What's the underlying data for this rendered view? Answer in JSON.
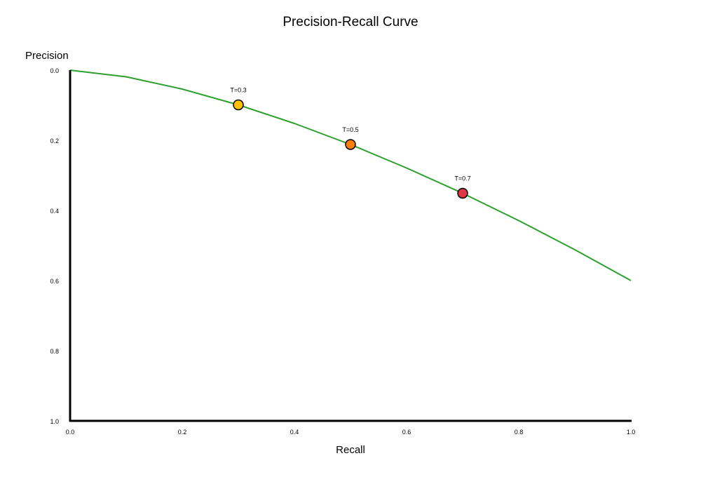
{
  "chart_data": {
    "type": "line",
    "title": "Precision-Recall Curve",
    "xlabel": "Recall",
    "ylabel": "Precision",
    "xlim": [
      0,
      1
    ],
    "ylim": [
      0,
      1
    ],
    "y_inverted": true,
    "grid": false,
    "x_ticks": [
      "0.0",
      "0.2",
      "0.4",
      "0.6",
      "0.8",
      "1.0"
    ],
    "y_ticks": [
      "0.0",
      "0.2",
      "0.4",
      "0.6",
      "0.8",
      "1.0"
    ],
    "series": [
      {
        "color": "#2ca02c",
        "x": [
          0,
          0.1,
          0.2,
          0.3,
          0.4,
          0.5,
          0.6,
          0.7,
          0.8,
          0.9,
          1.0
        ],
        "y": [
          0,
          0.019,
          0.054,
          0.099,
          0.152,
          0.212,
          0.279,
          0.351,
          0.429,
          0.512,
          0.6
        ]
      }
    ],
    "annotations": [
      {
        "label": "T=0.3",
        "x": 0.3,
        "y": 0.099,
        "color": "#FFC107"
      },
      {
        "label": "T=0.5",
        "x": 0.5,
        "y": 0.212,
        "color": "#FF7F0E"
      },
      {
        "label": "T=0.7",
        "x": 0.7,
        "y": 0.351,
        "color": "#DC3545"
      }
    ]
  }
}
